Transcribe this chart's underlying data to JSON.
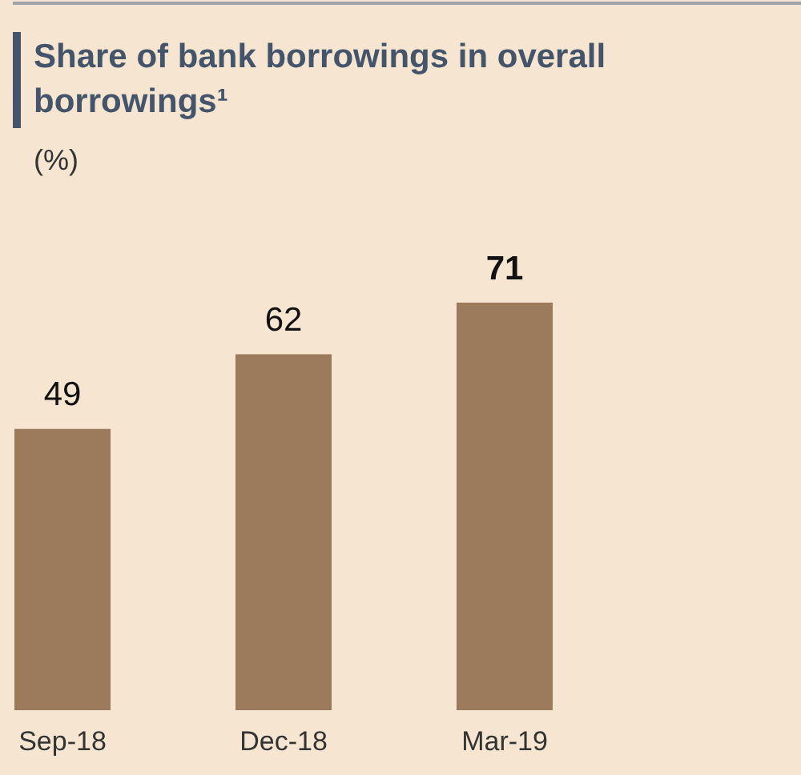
{
  "chart_data": {
    "type": "bar",
    "title": "Share of bank borrowings in overall borrowings¹",
    "subtitle": "(%)",
    "categories": [
      "Sep-18",
      "Dec-18",
      "Mar-19"
    ],
    "values": [
      49,
      62,
      71
    ],
    "color": "#9b7b5c",
    "data_labels": true,
    "grid": false,
    "legend": false
  }
}
